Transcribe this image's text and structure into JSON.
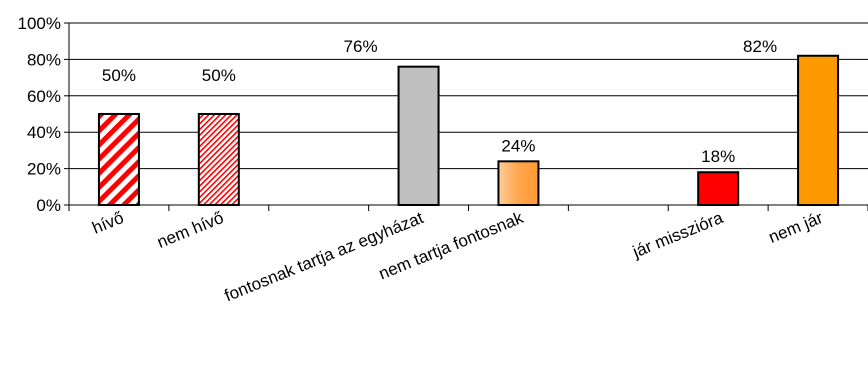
{
  "chart_data": {
    "type": "bar",
    "categories": [
      "hívő",
      "nem hívő",
      "",
      "fontosnak tartja  az egyházat",
      "nem tartja fontosnak",
      "",
      "jár misszióra",
      "nem jár"
    ],
    "values": [
      50,
      50,
      null,
      76,
      24,
      null,
      18,
      82
    ],
    "data_labels": [
      "50%",
      "50%",
      "",
      "76%",
      "24%",
      "",
      "18%",
      "82%"
    ],
    "bar_fills": [
      "red-white-diagonal-stripes",
      "red-white-fine-diagonal-stripes",
      "",
      "#c0c0c0",
      "#ffa64d",
      "",
      "#ff0000",
      "#ff9900"
    ],
    "y_ticks": [
      "0%",
      "20%",
      "40%",
      "60%",
      "80%",
      "100%"
    ],
    "ylim": [
      0,
      100
    ],
    "y_unit": "%",
    "grid": true,
    "legend": "none",
    "title": "",
    "xlabel": "",
    "ylabel": ""
  }
}
